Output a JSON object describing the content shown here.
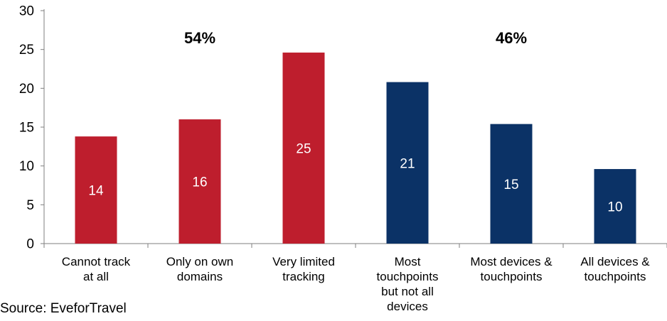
{
  "colors": {
    "red": "#be1e2d",
    "navy": "#0b3266",
    "axis": "#7f7f7f",
    "background": "#ffffff"
  },
  "source": "Source: EveforTravel",
  "group_labels": [
    "54%",
    "46%"
  ],
  "chart_data": {
    "type": "bar",
    "categories": [
      [
        "Cannot track",
        "at all"
      ],
      [
        "Only on own",
        "domains"
      ],
      [
        "Very limited",
        "tracking"
      ],
      [
        "Most",
        "touchpoints",
        "but not all",
        "devices"
      ],
      [
        "Most devices &",
        "touchpoints"
      ],
      [
        "All devices &",
        "touchpoints"
      ]
    ],
    "values": [
      13.8,
      16,
      24.6,
      20.8,
      15.4,
      9.6
    ],
    "data_labels": [
      "14",
      "16",
      "25",
      "21",
      "15",
      "10"
    ],
    "bar_colors": [
      "red",
      "red",
      "red",
      "navy",
      "navy",
      "navy"
    ],
    "yticks": [
      "0",
      "5",
      "10",
      "15",
      "20",
      "25",
      "30"
    ],
    "ylim": [
      0,
      30
    ],
    "title": "",
    "xlabel": "",
    "ylabel": "",
    "grid": false,
    "legend": "none"
  }
}
